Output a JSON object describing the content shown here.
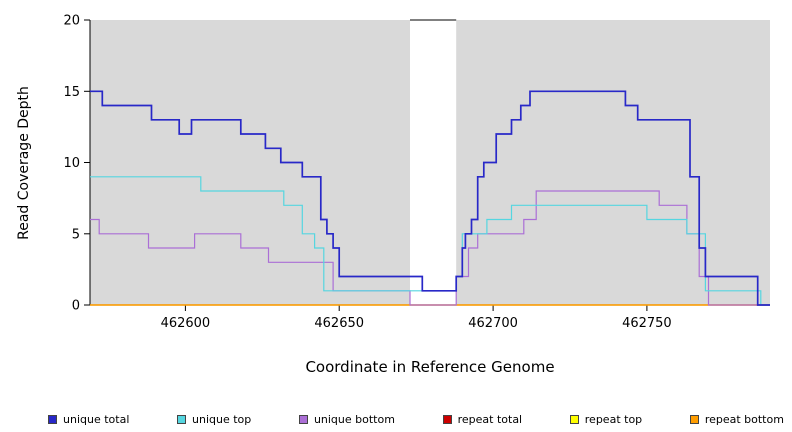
{
  "chart_data": {
    "type": "line",
    "line_style": "step-after",
    "title": "",
    "xlabel": "Coordinate in Reference Genome",
    "ylabel": "Read Coverage Depth",
    "xlim": [
      462569,
      462790
    ],
    "ylim": [
      0,
      20
    ],
    "x_ticks": [
      462600,
      462650,
      462700,
      462750
    ],
    "y_ticks": [
      0,
      5,
      10,
      15,
      20
    ],
    "panel_color": "#d9d9d9",
    "gap_region": {
      "start": 462673,
      "end": 462688
    },
    "series": [
      {
        "name": "repeat total",
        "color": "#cc0000",
        "width": 1.2,
        "points": [
          [
            462569,
            0
          ],
          [
            462790,
            0
          ]
        ]
      },
      {
        "name": "repeat top",
        "color": "#ffff00",
        "width": 1.2,
        "points": [
          [
            462569,
            0
          ],
          [
            462790,
            0
          ]
        ]
      },
      {
        "name": "repeat bottom",
        "color": "#ff9d00",
        "width": 1.2,
        "points": [
          [
            462569,
            0
          ],
          [
            462790,
            0
          ]
        ]
      },
      {
        "name": "unique bottom",
        "color": "#ab6fd6",
        "width": 1.2,
        "points": [
          [
            462569,
            6
          ],
          [
            462572,
            5
          ],
          [
            462588,
            4
          ],
          [
            462603,
            5
          ],
          [
            462618,
            4
          ],
          [
            462627,
            3
          ],
          [
            462648,
            1
          ],
          [
            462673,
            0
          ],
          [
            462688,
            2
          ],
          [
            462692,
            4
          ],
          [
            462695,
            5
          ],
          [
            462710,
            6
          ],
          [
            462714,
            8
          ],
          [
            462754,
            7
          ],
          [
            462763,
            5
          ],
          [
            462767,
            2
          ],
          [
            462770,
            0
          ],
          [
            462790,
            0
          ]
        ]
      },
      {
        "name": "unique top",
        "color": "#55d6e0",
        "width": 1.2,
        "points": [
          [
            462569,
            9
          ],
          [
            462605,
            8
          ],
          [
            462632,
            7
          ],
          [
            462638,
            5
          ],
          [
            462642,
            4
          ],
          [
            462645,
            1
          ],
          [
            462688,
            2
          ],
          [
            462690,
            5
          ],
          [
            462698,
            6
          ],
          [
            462706,
            7
          ],
          [
            462750,
            6
          ],
          [
            462763,
            5
          ],
          [
            462769,
            1
          ],
          [
            462787,
            0
          ],
          [
            462790,
            0
          ]
        ]
      },
      {
        "name": "unique total",
        "color": "#2828c8",
        "width": 1.7,
        "points": [
          [
            462569,
            15
          ],
          [
            462573,
            14
          ],
          [
            462589,
            13
          ],
          [
            462598,
            12
          ],
          [
            462602,
            13
          ],
          [
            462618,
            12
          ],
          [
            462626,
            11
          ],
          [
            462631,
            10
          ],
          [
            462638,
            9
          ],
          [
            462644,
            6
          ],
          [
            462646,
            5
          ],
          [
            462648,
            4
          ],
          [
            462650,
            2
          ],
          [
            462677,
            1
          ],
          [
            462688,
            2
          ],
          [
            462690,
            4
          ],
          [
            462691,
            5
          ],
          [
            462693,
            6
          ],
          [
            462695,
            9
          ],
          [
            462697,
            10
          ],
          [
            462701,
            12
          ],
          [
            462706,
            13
          ],
          [
            462709,
            14
          ],
          [
            462712,
            15
          ],
          [
            462743,
            14
          ],
          [
            462747,
            13
          ],
          [
            462764,
            9
          ],
          [
            462767,
            4
          ],
          [
            462769,
            2
          ],
          [
            462786,
            0
          ],
          [
            462790,
            0
          ]
        ]
      }
    ],
    "legend": [
      {
        "label": "unique total",
        "color": "#2828c8"
      },
      {
        "label": "unique top",
        "color": "#55d6e0"
      },
      {
        "label": "unique bottom",
        "color": "#ab6fd6"
      },
      {
        "label": "repeat total",
        "color": "#cc0000"
      },
      {
        "label": "repeat top",
        "color": "#ffff00"
      },
      {
        "label": "repeat bottom",
        "color": "#ff9d00"
      }
    ]
  }
}
